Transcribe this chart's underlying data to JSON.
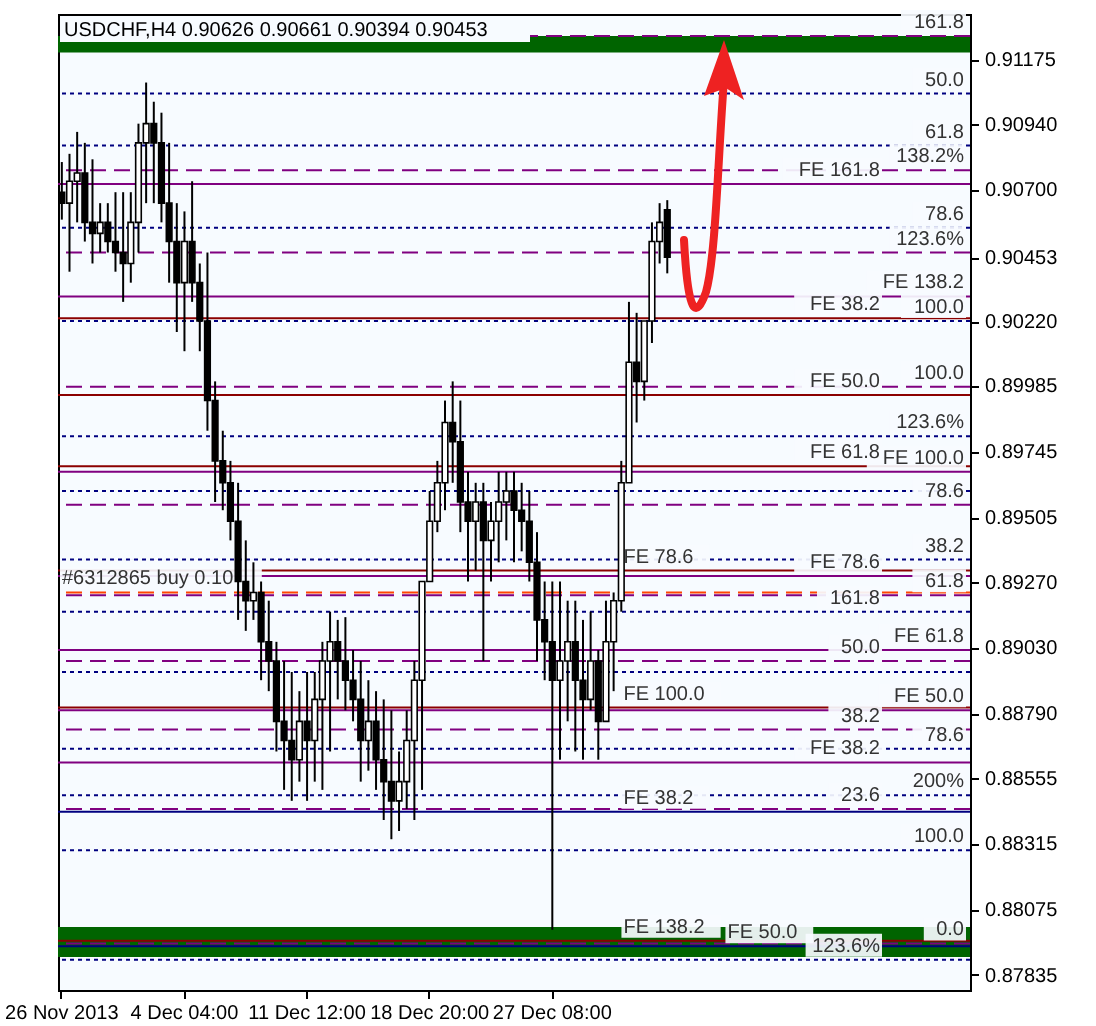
{
  "chart_data": {
    "type": "candlestick",
    "title": "USDCHF,H4  0.90626 0.90661 0.90394 0.90453",
    "color": "#000000",
    "categories": [
      "26 Nov 2013",
      null,
      null,
      null,
      null,
      null,
      null,
      null,
      null,
      null,
      null,
      null,
      null,
      null,
      null,
      null,
      "4 Dec 04:00",
      null,
      null,
      null,
      null,
      null,
      null,
      null,
      null,
      null,
      null,
      null,
      null,
      null,
      null,
      null,
      "11 Dec 12:00",
      null,
      null,
      null,
      null,
      null,
      null,
      null,
      null,
      null,
      null,
      null,
      null,
      null,
      null,
      null,
      "18 Dec 20:00",
      null,
      null,
      null,
      null,
      null,
      null,
      null,
      null,
      null,
      null,
      null,
      null,
      null,
      null,
      null,
      "27 Dec 08:00",
      null,
      null,
      null,
      null,
      null,
      null,
      null,
      null,
      null,
      null,
      null,
      null,
      null,
      null,
      null,
      null,
      null,
      null,
      null,
      null,
      null,
      null,
      null,
      null,
      null,
      null,
      null,
      null,
      null,
      null,
      null,
      null,
      null,
      null,
      null,
      null,
      null,
      null,
      null,
      null,
      null,
      null,
      null,
      null,
      null,
      null,
      null,
      null,
      null,
      null,
      null,
      null,
      null,
      null
    ],
    "ohlc": [
      [
        0.9069,
        0.908,
        0.9059,
        0.9065
      ],
      [
        0.9065,
        0.9083,
        0.904,
        0.9073
      ],
      [
        0.9073,
        0.9091,
        0.9058,
        0.9076
      ],
      [
        0.9076,
        0.9087,
        0.9051,
        0.9058
      ],
      [
        0.9058,
        0.9081,
        0.9043,
        0.9054
      ],
      [
        0.9054,
        0.9065,
        0.9047,
        0.9058
      ],
      [
        0.9058,
        0.9065,
        0.9047,
        0.9051
      ],
      [
        0.9051,
        0.9069,
        0.904,
        0.9047
      ],
      [
        0.9047,
        0.9069,
        0.9029,
        0.9043
      ],
      [
        0.9043,
        0.9069,
        0.9036,
        0.9058
      ],
      [
        0.9058,
        0.9094,
        0.9047,
        0.9087
      ],
      [
        0.9087,
        0.9109,
        0.9065,
        0.9094
      ],
      [
        0.9094,
        0.9102,
        0.9065,
        0.9087
      ],
      [
        0.9087,
        0.9098,
        0.9058,
        0.9065
      ],
      [
        0.9065,
        0.9087,
        0.9036,
        0.9051
      ],
      [
        0.9051,
        0.9065,
        0.9018,
        0.9036
      ],
      [
        0.9036,
        0.9062,
        0.9011,
        0.9051
      ],
      [
        0.9051,
        0.9073,
        0.9029,
        0.9036
      ],
      [
        0.9036,
        0.9043,
        0.9011,
        0.9022
      ],
      [
        0.9022,
        0.9047,
        0.8982,
        0.8993
      ],
      [
        0.8993,
        0.9,
        0.8956,
        0.8971
      ],
      [
        0.8971,
        0.8982,
        0.8953,
        0.8963
      ],
      [
        0.8963,
        0.8971,
        0.8942,
        0.8949
      ],
      [
        0.8949,
        0.8963,
        0.8913,
        0.8927
      ],
      [
        0.8927,
        0.8942,
        0.8909,
        0.892
      ],
      [
        0.892,
        0.8934,
        0.8913,
        0.8923
      ],
      [
        0.8923,
        0.8927,
        0.8891,
        0.8905
      ],
      [
        0.8905,
        0.892,
        0.8887,
        0.8898
      ],
      [
        0.8898,
        0.8905,
        0.8865,
        0.8876
      ],
      [
        0.8876,
        0.8898,
        0.8851,
        0.8869
      ],
      [
        0.8869,
        0.8894,
        0.8847,
        0.8862
      ],
      [
        0.8862,
        0.8887,
        0.8854,
        0.8876
      ],
      [
        0.8876,
        0.8894,
        0.8847,
        0.8869
      ],
      [
        0.8869,
        0.8894,
        0.8854,
        0.8884
      ],
      [
        0.8884,
        0.8905,
        0.8851,
        0.8898
      ],
      [
        0.8898,
        0.8916,
        0.8865,
        0.8905
      ],
      [
        0.8905,
        0.8913,
        0.8884,
        0.8898
      ],
      [
        0.8898,
        0.8914,
        0.888,
        0.8891
      ],
      [
        0.8891,
        0.8902,
        0.8876,
        0.8884
      ],
      [
        0.8884,
        0.8898,
        0.8854,
        0.8869
      ],
      [
        0.8869,
        0.8891,
        0.8858,
        0.8876
      ],
      [
        0.8876,
        0.8887,
        0.8851,
        0.8862
      ],
      [
        0.8862,
        0.8884,
        0.884,
        0.8854
      ],
      [
        0.8854,
        0.888,
        0.8833,
        0.8847
      ],
      [
        0.8847,
        0.8865,
        0.8836,
        0.8854
      ],
      [
        0.8854,
        0.888,
        0.8844,
        0.8869
      ],
      [
        0.8869,
        0.8898,
        0.884,
        0.8891
      ],
      [
        0.8891,
        0.8927,
        0.8851,
        0.8927
      ],
      [
        0.8927,
        0.896,
        0.8927,
        0.8949
      ],
      [
        0.8949,
        0.8971,
        0.8945,
        0.8963
      ],
      [
        0.8963,
        0.8993,
        0.8953,
        0.8985
      ],
      [
        0.8985,
        0.9,
        0.8963,
        0.8978
      ],
      [
        0.8978,
        0.8993,
        0.8945,
        0.8956
      ],
      [
        0.8956,
        0.8967,
        0.8927,
        0.8949
      ],
      [
        0.8949,
        0.8963,
        0.8931,
        0.8956
      ],
      [
        0.8956,
        0.8963,
        0.8898,
        0.8942
      ],
      [
        0.8942,
        0.8956,
        0.8927,
        0.8949
      ],
      [
        0.8949,
        0.8967,
        0.8934,
        0.8956
      ],
      [
        0.8956,
        0.8967,
        0.8942,
        0.896
      ],
      [
        0.896,
        0.8967,
        0.8934,
        0.8953
      ],
      [
        0.8953,
        0.8963,
        0.8938,
        0.8949
      ],
      [
        0.8949,
        0.896,
        0.8927,
        0.8934
      ],
      [
        0.8934,
        0.8945,
        0.8898,
        0.8913
      ],
      [
        0.8913,
        0.8927,
        0.8891,
        0.8905
      ],
      [
        0.8905,
        0.8927,
        0.88,
        0.8891
      ],
      [
        0.8891,
        0.8927,
        0.8862,
        0.8898
      ],
      [
        0.8898,
        0.892,
        0.8876,
        0.8905
      ],
      [
        0.8905,
        0.892,
        0.8865,
        0.8891
      ],
      [
        0.8891,
        0.8913,
        0.8862,
        0.8884
      ],
      [
        0.8884,
        0.8916,
        0.888,
        0.8898
      ],
      [
        0.8898,
        0.8902,
        0.8862,
        0.8876
      ],
      [
        0.8876,
        0.892,
        0.8876,
        0.8905
      ],
      [
        0.8905,
        0.8923,
        0.8887,
        0.892
      ],
      [
        0.892,
        0.8971,
        0.8916,
        0.8963
      ],
      [
        0.8963,
        0.9029,
        0.8963,
        0.9007
      ],
      [
        0.9007,
        0.9025,
        0.8985,
        0.9
      ],
      [
        0.9,
        0.9022,
        0.8993,
        0.9022
      ],
      [
        0.9022,
        0.9058,
        0.9014,
        0.9051
      ],
      [
        0.9051,
        0.9065,
        0.9043,
        0.9058
      ],
      [
        0.90626,
        0.90661,
        0.90394,
        0.90453
      ],
      null,
      null,
      null,
      null,
      null,
      null,
      null,
      null,
      null,
      null,
      null,
      null,
      null,
      null,
      null,
      null,
      null,
      null,
      null,
      null,
      null,
      null,
      null,
      null,
      null,
      null,
      null,
      null,
      null,
      null,
      null,
      null,
      null,
      null,
      null,
      null,
      null,
      null,
      null
    ],
    "ylim": [
      0.8778,
      0.9134
    ],
    "yticks": [
      0.91175,
      {
        "value": 0.9094,
        "label": "0.90940"
      },
      {
        "value": 0.907,
        "label": "0.90700"
      },
      0.90453,
      {
        "value": 0.9022,
        "label": "0.90220"
      },
      0.89985,
      0.89745,
      0.89505,
      {
        "value": 0.8927,
        "label": "0.89270"
      },
      {
        "value": 0.8903,
        "label": "0.89030"
      },
      {
        "value": 0.8879,
        "label": "0.88790"
      },
      0.88555,
      0.88315,
      0.88075,
      0.87835
    ],
    "bands": [
      {
        "axis": "y",
        "from": 0.912,
        "to": 0.9126,
        "color": "#006400"
      },
      {
        "axis": "y",
        "from": 0.879,
        "to": 0.8801,
        "color": "#006400"
      }
    ],
    "ref_lines": [
      {
        "axis": "y",
        "value": 0.9126,
        "color": "#800080",
        "line_style": "dashed"
      },
      {
        "axis": "y",
        "value": 0.9105,
        "color": "#000080",
        "line_style": "dotted"
      },
      {
        "axis": "y",
        "value": 0.9086,
        "color": "#000080",
        "line_style": "dotted"
      },
      {
        "axis": "y",
        "value": 0.9077,
        "color": "#800080",
        "line_style": "dashed"
      },
      {
        "axis": "y",
        "value": 0.9072,
        "color": "#800080",
        "line_style": "solid"
      },
      {
        "axis": "y",
        "value": 0.9056,
        "color": "#000080",
        "line_style": "dotted"
      },
      {
        "axis": "y",
        "value": 0.9047,
        "color": "#800080",
        "line_style": "dashed"
      },
      {
        "axis": "y",
        "value": 0.9031,
        "color": "#800080",
        "line_style": "solid"
      },
      {
        "axis": "y",
        "value": 0.9023,
        "color": "#8b0000",
        "line_style": "solid"
      },
      {
        "axis": "y",
        "value": 0.9022,
        "color": "#000080",
        "line_style": "dotted"
      },
      {
        "axis": "y",
        "value": 0.8998,
        "color": "#800080",
        "line_style": "dashed"
      },
      {
        "axis": "y",
        "value": 0.8995,
        "color": "#8b0000",
        "line_style": "solid"
      },
      {
        "axis": "y",
        "value": 0.898,
        "color": "#000080",
        "line_style": "dotted"
      },
      {
        "axis": "y",
        "value": 0.8969,
        "color": "#8b0000",
        "line_style": "solid"
      },
      {
        "axis": "y",
        "value": 0.8967,
        "color": "#800080",
        "line_style": "solid"
      },
      {
        "axis": "y",
        "value": 0.896,
        "color": "#000080",
        "line_style": "dotted"
      },
      {
        "axis": "y",
        "value": 0.8955,
        "color": "#800080",
        "line_style": "dashed"
      },
      {
        "axis": "y",
        "value": 0.8935,
        "color": "#000080",
        "line_style": "dotted"
      },
      {
        "axis": "y",
        "value": 0.8931,
        "color": "#8b0000",
        "line_style": "solid"
      },
      {
        "axis": "y",
        "value": 0.8929,
        "color": "#800080",
        "line_style": "solid"
      },
      {
        "axis": "y",
        "value": 0.8923,
        "color": "#ff4500",
        "line_style": "dashed"
      },
      {
        "axis": "y",
        "value": 0.8922,
        "color": "#800080",
        "line_style": "dashed"
      },
      {
        "axis": "y",
        "value": 0.8916,
        "color": "#000080",
        "line_style": "dotted"
      },
      {
        "axis": "y",
        "value": 0.8902,
        "color": "#800080",
        "line_style": "solid"
      },
      {
        "axis": "y",
        "value": 0.8898,
        "color": "#800080",
        "line_style": "dashed"
      },
      {
        "axis": "y",
        "value": 0.8894,
        "color": "#000080",
        "line_style": "dotted"
      },
      {
        "axis": "y",
        "value": 0.8881,
        "color": "#8b0000",
        "line_style": "solid"
      },
      {
        "axis": "y",
        "value": 0.888,
        "color": "#800080",
        "line_style": "solid"
      },
      {
        "axis": "y",
        "value": 0.8873,
        "color": "#800080",
        "line_style": "dashed"
      },
      {
        "axis": "y",
        "value": 0.8866,
        "color": "#000080",
        "line_style": "dotted"
      },
      {
        "axis": "y",
        "value": 0.8861,
        "color": "#800080",
        "line_style": "solid"
      },
      {
        "axis": "y",
        "value": 0.8849,
        "color": "#000080",
        "line_style": "dotted"
      },
      {
        "axis": "y",
        "value": 0.8844,
        "color": "#800080",
        "line_style": "dashed"
      },
      {
        "axis": "y",
        "value": 0.8843,
        "color": "#000080",
        "line_style": "solid"
      },
      {
        "axis": "y",
        "value": 0.8829,
        "color": "#000080",
        "line_style": "dotted"
      },
      {
        "axis": "y",
        "value": 0.8796,
        "color": "#8b0000",
        "line_style": "solid"
      },
      {
        "axis": "y",
        "value": 0.8795,
        "color": "#800080",
        "line_style": "dashed"
      },
      {
        "axis": "y",
        "value": 0.8794,
        "color": "#000080",
        "line_style": "solid"
      },
      {
        "axis": "y",
        "value": 0.8789,
        "color": "#000080",
        "line_style": "dotted"
      }
    ],
    "annotations": [
      {
        "text": "161.8",
        "y": 0.9126
      },
      {
        "text": "50.0",
        "y": 0.9105
      },
      {
        "text": "61.8",
        "y": 0.9086
      },
      {
        "text": "138.2%",
        "y": 0.9077
      },
      {
        "text": "FE 161.8",
        "y": 0.9072
      },
      {
        "text": "78.6",
        "y": 0.9056
      },
      {
        "text": "123.6%",
        "y": 0.9047
      },
      {
        "text": "FE 138.2",
        "y": 0.9031
      },
      {
        "text": "100.0",
        "y": 0.9022
      },
      {
        "text": "100.0",
        "y": 0.8998
      },
      {
        "text": "123.6%",
        "y": 0.898
      },
      {
        "text": "FE 100.0",
        "y": 0.8967
      },
      {
        "text": "78.6",
        "y": 0.8955
      },
      {
        "text": "38.2",
        "y": 0.8935
      },
      {
        "text": "FE 78.6",
        "y": 0.8929
      },
      {
        "text": "61.8",
        "y": 0.8922
      },
      {
        "text": "161.8",
        "y": 0.8916
      },
      {
        "text": "FE 61.8",
        "y": 0.8902
      },
      {
        "text": "50.0",
        "y": 0.8898
      },
      {
        "text": "FE 50.0",
        "y": 0.888
      },
      {
        "text": "38.2",
        "y": 0.8873
      },
      {
        "text": "78.6",
        "y": 0.8866
      },
      {
        "text": "FE 38.2",
        "y": 0.8861
      },
      {
        "text": "200%",
        "y": 0.8849
      },
      {
        "text": "23.6",
        "y": 0.8844
      },
      {
        "text": "100.0",
        "y": 0.8829
      },
      {
        "text": "0.0",
        "y": 0.8795
      },
      {
        "text": "123.6%",
        "y": 0.8789
      },
      {
        "text": "FE 38.2",
        "y": 0.9023
      },
      {
        "text": "FE 50.0",
        "y": 0.8995
      },
      {
        "text": "FE 61.8",
        "y": 0.8969
      },
      {
        "text": "FE 78.6",
        "y": 0.8931
      },
      {
        "text": "#6312865 buy 0.10",
        "x": "26 Nov 2013",
        "y": 0.8923
      },
      {
        "text": "FE 100.0",
        "y": 0.8881
      },
      {
        "text": "FE 38.2",
        "y": 0.8843
      },
      {
        "text": "FE 138.2",
        "y": 0.8796
      },
      {
        "text": "FE 50.0",
        "y": 0.8794
      }
    ]
  }
}
